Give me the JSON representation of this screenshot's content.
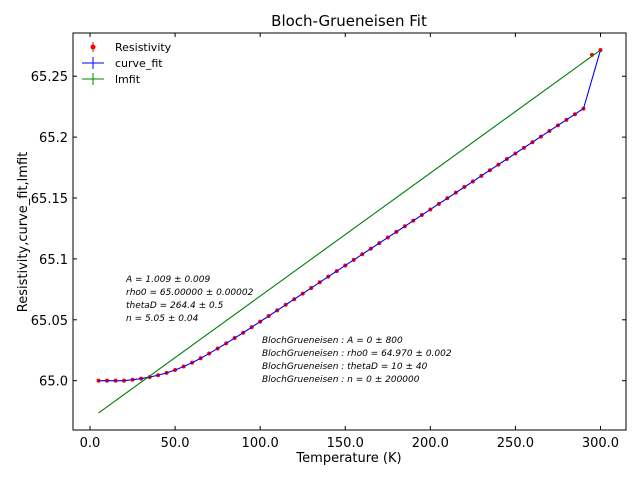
{
  "chart_data": {
    "type": "line",
    "title": "Bloch-Grueneisen Fit",
    "xlabel": "Temperature (K)",
    "ylabel": "Resistivity,curve_fit,lmfit",
    "xlim": [
      -10,
      315
    ],
    "ylim": [
      64.9595,
      65.2855
    ],
    "xticks": [
      0.0,
      50.0,
      100.0,
      150.0,
      200.0,
      250.0,
      300.0
    ],
    "xtick_labels": [
      "0.0",
      "50.0",
      "100.0",
      "150.0",
      "200.0",
      "250.0",
      "300.0"
    ],
    "yticks": [
      65.0,
      65.05,
      65.1,
      65.15,
      65.2,
      65.25
    ],
    "ytick_labels": [
      "65.0",
      "65.05",
      "65.1",
      "65.15",
      "65.2",
      "65.25"
    ],
    "grid": false,
    "legend_position": "top-left",
    "legend": [
      "Resistivity",
      "curve_fit",
      "lmfit"
    ],
    "series": [
      {
        "name": "Resistivity",
        "style": "errorbar-points",
        "color": "#ff0000",
        "x": [
          5,
          10,
          15,
          20,
          25,
          30,
          35,
          40,
          45,
          50,
          55,
          60,
          65,
          70,
          75,
          80,
          85,
          90,
          95,
          100,
          105,
          110,
          115,
          120,
          125,
          130,
          135,
          140,
          145,
          150,
          155,
          160,
          165,
          170,
          175,
          180,
          185,
          190,
          195,
          200,
          205,
          210,
          215,
          220,
          225,
          230,
          235,
          240,
          245,
          250,
          255,
          260,
          265,
          270,
          275,
          280,
          285,
          290,
          295,
          300
        ],
        "values": [
          65.0,
          65.0,
          65.0,
          65.0,
          65.0008,
          65.0017,
          65.0029,
          65.0045,
          65.0064,
          65.0088,
          65.0116,
          65.0148,
          65.0184,
          65.0223,
          65.0264,
          65.0306,
          65.035,
          65.0394,
          65.0439,
          65.0485,
          65.0531,
          65.0577,
          65.0623,
          65.0669,
          65.0715,
          65.0761,
          65.0808,
          65.0854,
          65.09,
          65.0946,
          65.0992,
          65.1038,
          65.1084,
          65.113,
          65.1176,
          65.1222,
          65.1268,
          65.1314,
          65.136,
          65.1406,
          65.1452,
          65.1498,
          65.1544,
          65.159,
          65.1636,
          65.1682,
          65.1728,
          65.1774,
          65.182,
          65.1866,
          65.1912,
          65.1958,
          65.2004,
          65.205,
          65.2096,
          65.2142,
          65.2188,
          65.2234,
          65.2675,
          65.2715
        ]
      },
      {
        "name": "curve_fit",
        "style": "line",
        "color": "#0000ff",
        "x": [
          5,
          10,
          15,
          20,
          25,
          30,
          35,
          40,
          45,
          50,
          55,
          60,
          65,
          70,
          75,
          80,
          85,
          90,
          95,
          100,
          110,
          120,
          130,
          140,
          150,
          160,
          170,
          180,
          190,
          200,
          210,
          220,
          230,
          240,
          250,
          260,
          270,
          280,
          290,
          300
        ],
        "values": [
          65.0,
          65.0,
          65.0,
          65.0,
          65.0008,
          65.0017,
          65.0029,
          65.0045,
          65.0064,
          65.0088,
          65.0116,
          65.0148,
          65.0184,
          65.0223,
          65.0264,
          65.0306,
          65.035,
          65.0394,
          65.0439,
          65.0485,
          65.0577,
          65.0669,
          65.0761,
          65.0854,
          65.0946,
          65.1038,
          65.113,
          65.1222,
          65.1314,
          65.1406,
          65.1498,
          65.159,
          65.1682,
          65.1774,
          65.1866,
          65.1958,
          65.205,
          65.2142,
          65.2234,
          65.2715
        ]
      },
      {
        "name": "lmfit",
        "style": "line",
        "color": "#008000",
        "x": [
          5,
          300
        ],
        "values": [
          64.9735,
          65.2715
        ]
      }
    ],
    "annotations": [
      {
        "group": "curve_fit_params",
        "lines": [
          "A = 1.009 ± 0.009",
          "rho0 = 65.00000 ± 0.00002",
          "thetaD = 264.4 ± 0.5",
          "n = 5.05 ± 0.04"
        ]
      },
      {
        "group": "lmfit_params",
        "lines": [
          "BlochGrueneisen : A = 0 ± 800",
          "BlochGrueneisen : rho0 = 64.970 ± 0.002",
          "BlochGrueneisen : thetaD = 10 ± 40",
          "BlochGrueneisen : n = 0 ± 200000"
        ]
      }
    ]
  }
}
